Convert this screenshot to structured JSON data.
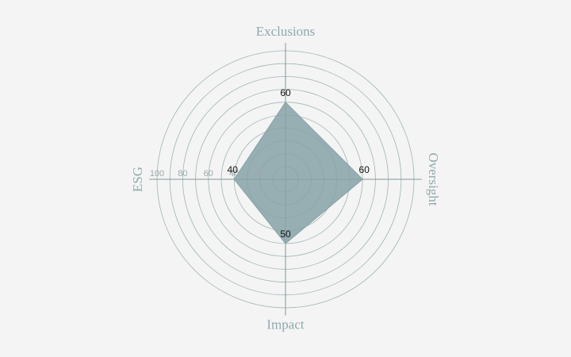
{
  "chart_data": {
    "type": "radar",
    "categories": [
      "Exclusions",
      "Oversight",
      "Impact",
      "ESG"
    ],
    "values": [
      60,
      60,
      50,
      40
    ],
    "color": "#86a2a7",
    "rlim": [
      0,
      100
    ],
    "rticks": [
      20,
      40,
      60,
      80,
      100
    ],
    "grid": true
  }
}
